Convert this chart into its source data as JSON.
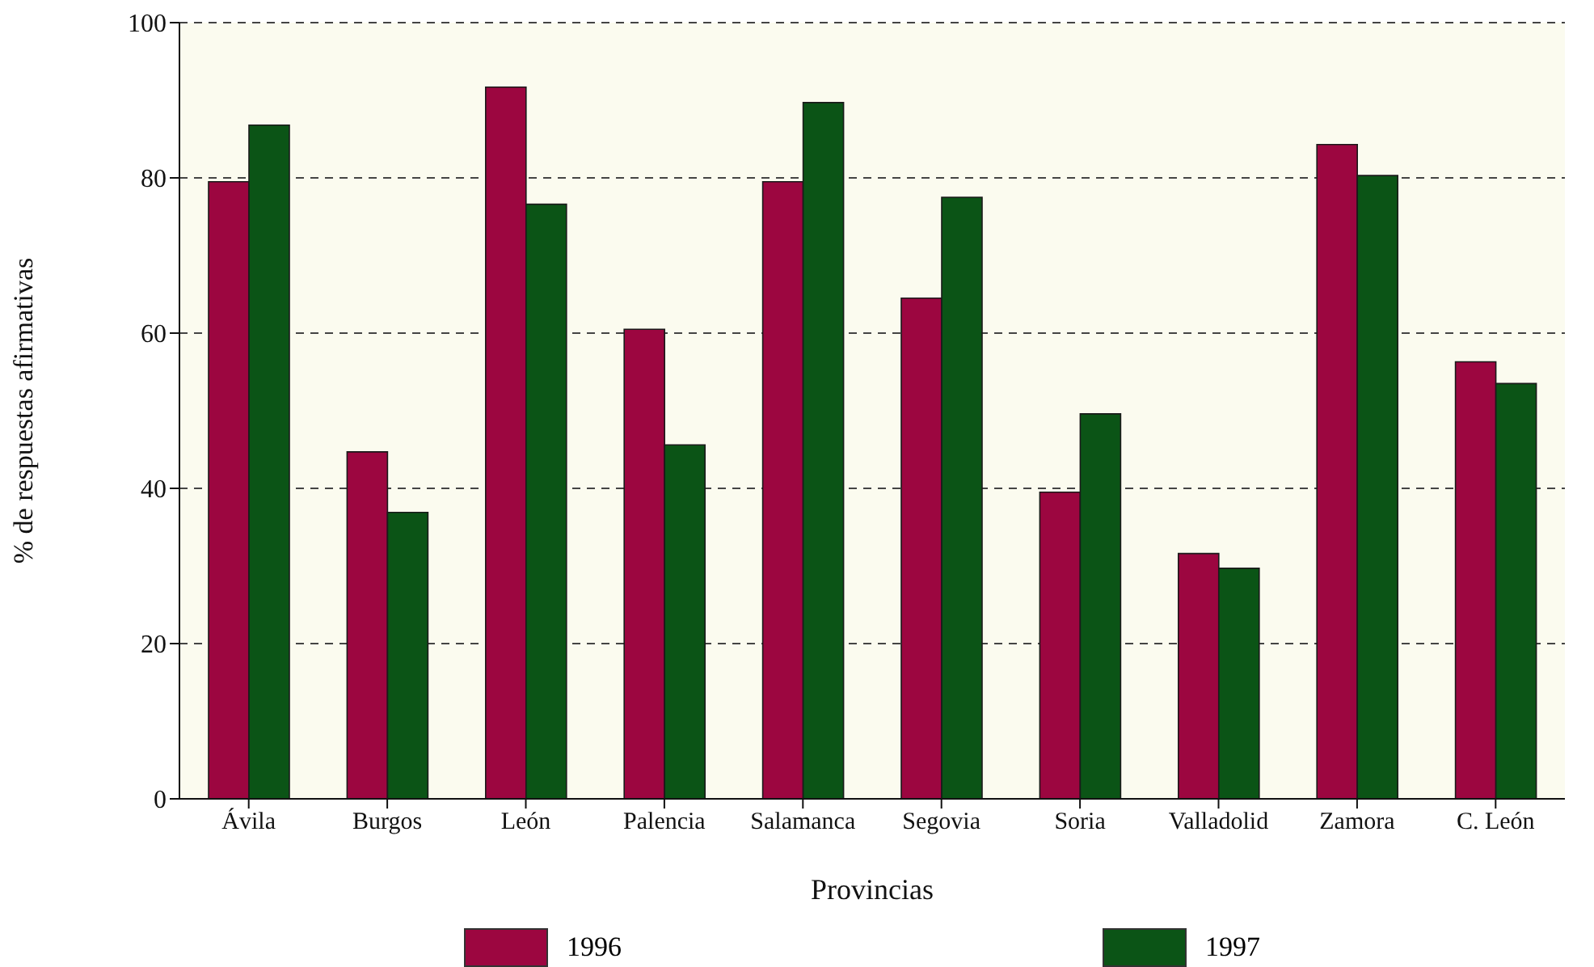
{
  "chart_data": {
    "type": "bar",
    "xlabel": "Provincias",
    "ylabel": "% de respuestas afirmativas",
    "categories": [
      "Ávila",
      "Burgos",
      "León",
      "Palencia",
      "Salamanca",
      "Segovia",
      "Soria",
      "Valladolid",
      "Zamora",
      "C. León"
    ],
    "series": [
      {
        "name": "1996",
        "color": "#9c0640",
        "values": [
          79.5,
          44.7,
          91.7,
          60.5,
          79.5,
          64.5,
          39.5,
          31.6,
          84.3,
          56.3
        ]
      },
      {
        "name": "1997",
        "color": "#0b5416",
        "values": [
          86.8,
          36.9,
          76.6,
          45.6,
          89.7,
          77.5,
          49.6,
          29.7,
          80.3,
          53.5
        ]
      }
    ],
    "ylim": [
      0,
      100
    ],
    "yticks": [
      0,
      20,
      40,
      60,
      80,
      100
    ],
    "grid": "y",
    "legend": "bottom"
  }
}
